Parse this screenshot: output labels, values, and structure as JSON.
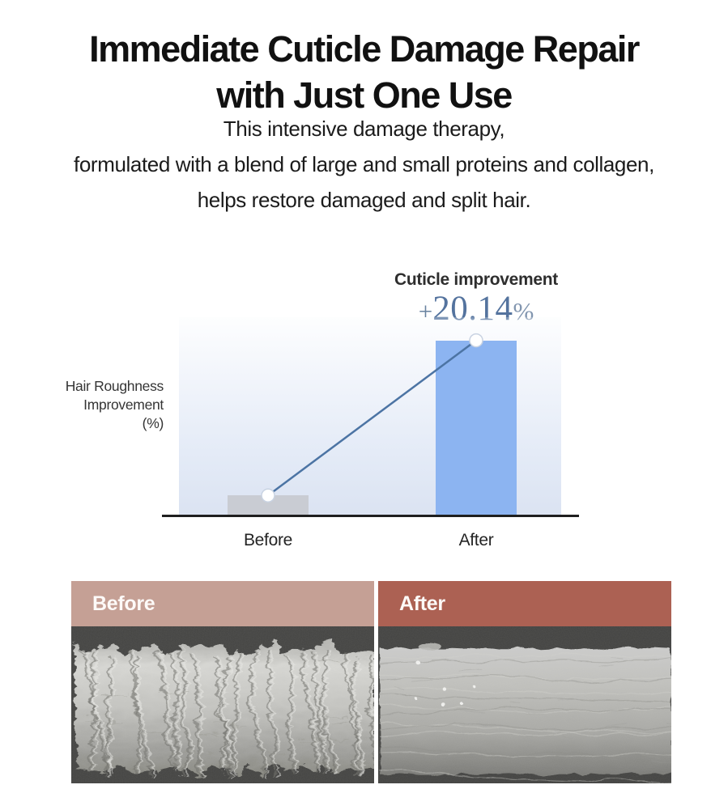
{
  "title": {
    "line1": "Immediate Cuticle Damage Repair",
    "line2": "with Just One Use"
  },
  "subtitle": {
    "line1": "This intensive damage therapy,",
    "line2": "formulated with a blend of large and small proteins and collagen,",
    "line3": "helps restore damaged and split hair."
  },
  "chart_data": {
    "type": "bar",
    "title": "Cuticle improvement",
    "highlight": {
      "prefix": "+",
      "value": "20.14",
      "suffix": "%"
    },
    "ylabel_lines": [
      "Hair Roughness",
      "Improvement",
      "(%)"
    ],
    "categories": [
      "Before",
      "After"
    ],
    "values": [
      2.3,
      20.14
    ],
    "ylim": [
      0,
      22.8
    ],
    "grid": false,
    "legend": "none",
    "bar_colors": [
      "#c9ccd3",
      "#8cb4f1"
    ],
    "line_color": "#4c74a4",
    "marker_fill": "#ffffff",
    "marker_stroke": "#c9d3e2",
    "axis_color": "#1f1f1f"
  },
  "comparison": {
    "before": {
      "label": "Before",
      "header_color": "#c5a095"
    },
    "after": {
      "label": "After",
      "header_color": "#ac6153"
    }
  }
}
